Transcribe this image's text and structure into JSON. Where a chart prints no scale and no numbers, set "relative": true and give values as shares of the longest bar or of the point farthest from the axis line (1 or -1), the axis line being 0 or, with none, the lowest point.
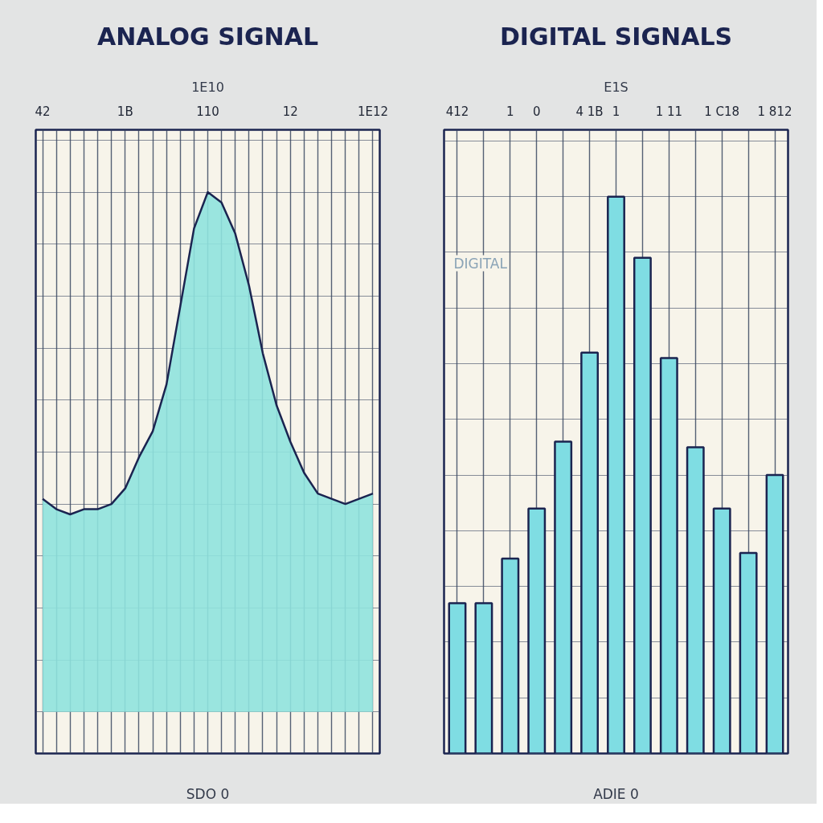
{
  "chart_data": [
    {
      "type": "area",
      "title": "ANALOG SIGNAL",
      "subtitle": "1E10",
      "xlabel": "SDO 0",
      "relative": true,
      "grid": true,
      "color": "#8fe3de",
      "categories": [
        "42",
        null,
        null,
        null,
        null,
        null,
        "1B",
        null,
        null,
        null,
        null,
        null,
        "110",
        null,
        null,
        null,
        null,
        null,
        "12",
        null,
        null,
        null,
        null,
        null,
        "1E12"
      ],
      "values": [
        0.41,
        0.39,
        0.38,
        0.39,
        0.39,
        0.4,
        0.43,
        0.49,
        0.54,
        0.63,
        0.78,
        0.93,
        1.0,
        0.98,
        0.92,
        0.82,
        0.69,
        0.59,
        0.52,
        0.46,
        0.42,
        0.41,
        0.4,
        0.41,
        0.42
      ]
    },
    {
      "type": "bar",
      "title": "DIGITAL SIGNALS",
      "subtitle": "E1S",
      "xlabel": "ADIE 0",
      "relative": true,
      "grid": true,
      "color": "#7fdde3",
      "annotations": [
        "DIGITAL"
      ],
      "categories": [
        "412",
        null,
        "1",
        "0",
        null,
        "4 1B",
        "1",
        null,
        "1 11",
        null,
        "1 C18",
        null,
        "1 812"
      ],
      "values": [
        0.27,
        0.27,
        0.35,
        0.44,
        0.56,
        0.72,
        1.0,
        0.89,
        0.71,
        0.55,
        0.44,
        0.36,
        0.5
      ]
    }
  ]
}
